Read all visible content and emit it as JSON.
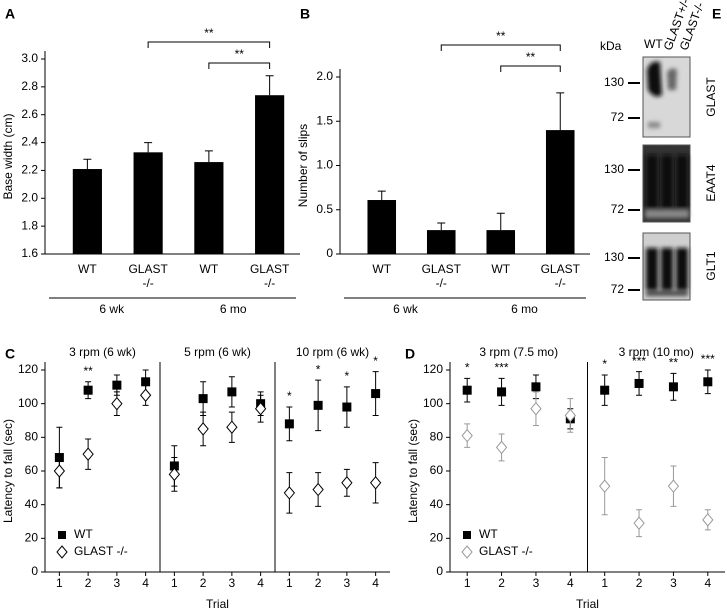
{
  "chart_data": [
    {
      "panel": "A",
      "type": "bar",
      "ylabel": "Base width (cm)",
      "categories": [
        "WT",
        "GLAST -/-",
        "WT",
        "GLAST -/-"
      ],
      "groups": [
        "6 wk",
        "6 mo"
      ],
      "values": [
        2.21,
        2.33,
        2.26,
        2.74
      ],
      "errors": [
        0.07,
        0.07,
        0.08,
        0.14
      ],
      "color": "#000000",
      "ylim": [
        1.6,
        3.0
      ],
      "yticks": [
        1.6,
        1.8,
        {
          "value": 2,
          "label": "2.0"
        },
        2.2,
        2.4,
        2.6,
        2.8,
        {
          "value": 3,
          "label": "3.0"
        }
      ],
      "brackets": [
        {
          "between": [
            1,
            3
          ],
          "label": "**"
        },
        {
          "between": [
            2,
            3
          ],
          "label": "**"
        }
      ]
    },
    {
      "panel": "B",
      "type": "bar",
      "ylabel": "Number of slips",
      "categories": [
        "WT",
        "GLAST -/-",
        "WT",
        "GLAST -/-"
      ],
      "groups": [
        "6 wk",
        "6 mo"
      ],
      "values": [
        0.61,
        0.27,
        0.27,
        1.4
      ],
      "errors": [
        0.1,
        0.08,
        0.19,
        0.42
      ],
      "color": "#000000",
      "ylim": [
        0,
        2.0
      ],
      "yticks": [
        0,
        0.5,
        {
          "value": 1,
          "label": "1.0"
        },
        1.5,
        {
          "value": 2,
          "label": "2.0"
        }
      ],
      "brackets": [
        {
          "between": [
            1,
            3
          ],
          "label": "**"
        },
        {
          "between": [
            2,
            3
          ],
          "label": "**"
        }
      ]
    },
    {
      "panel": "C",
      "type": "scatter",
      "ylabel": "Latency to fall (sec)",
      "xlabel": "Trial",
      "ylim": [
        0,
        120
      ],
      "yticks": [
        0,
        20,
        40,
        60,
        80,
        100,
        120
      ],
      "xlim": [
        0.5,
        4.5
      ],
      "legend": "lower left",
      "series": [
        {
          "name": "WT",
          "marker": "square",
          "color": "#000000"
        },
        {
          "name": "GLAST -/-",
          "marker": "diamond",
          "color": "#000000"
        }
      ],
      "facets": [
        {
          "title": "3 rpm (6 wk)",
          "x": [
            1,
            2,
            3,
            4
          ],
          "values": [
            [
              68,
              108,
              111,
              113
            ],
            [
              60,
              70,
              100,
              105
            ]
          ],
          "errors": [
            [
              18,
              5,
              6,
              7
            ],
            [
              10,
              9,
              7,
              6
            ]
          ],
          "stars": [
            null,
            "**",
            null,
            null
          ]
        },
        {
          "title": "5 rpm (6 wk)",
          "x": [
            1,
            2,
            3,
            4
          ],
          "values": [
            [
              63,
              103,
              107,
              100
            ],
            [
              58,
              85,
              86,
              97
            ]
          ],
          "errors": [
            [
              12,
              10,
              9,
              7
            ],
            [
              10,
              10,
              9,
              8
            ]
          ],
          "stars": [
            null,
            null,
            null,
            null
          ]
        },
        {
          "title": "10 rpm (6 wk)",
          "x": [
            1,
            2,
            3,
            4
          ],
          "values": [
            [
              88,
              99,
              98,
              106
            ],
            [
              47,
              49,
              53,
              53
            ]
          ],
          "errors": [
            [
              10,
              15,
              12,
              13
            ],
            [
              12,
              10,
              8,
              12
            ]
          ],
          "stars": [
            "*",
            "*",
            "*",
            "*"
          ]
        }
      ]
    },
    {
      "panel": "D",
      "type": "scatter",
      "ylabel": "Latency to fall (sec)",
      "xlabel": "Trial",
      "ylim": [
        0,
        120
      ],
      "yticks": [
        0,
        20,
        40,
        60,
        80,
        100,
        120
      ],
      "xlim": [
        0.5,
        4.5
      ],
      "legend": "lower left",
      "series": [
        {
          "name": "WT",
          "marker": "square",
          "color": "#000000"
        },
        {
          "name": "GLAST -/-",
          "marker": "diamond",
          "color": "#999999"
        }
      ],
      "facets": [
        {
          "title": "3 rpm (7.5 mo)",
          "x": [
            1,
            2,
            3,
            4
          ],
          "values": [
            [
              108,
              107,
              110,
              91
            ],
            [
              81,
              74,
              97,
              93
            ]
          ],
          "errors": [
            [
              7,
              8,
              7,
              6
            ],
            [
              7,
              8,
              10,
              10
            ]
          ],
          "stars": [
            "*",
            "***",
            null,
            null
          ]
        },
        {
          "title": "3 rpm (10 mo)",
          "x": [
            1,
            2,
            3,
            4
          ],
          "values": [
            [
              108,
              112,
              110,
              113
            ],
            [
              51,
              29,
              51,
              31
            ]
          ],
          "errors": [
            [
              9,
              7,
              8,
              7
            ],
            [
              17,
              8,
              12,
              6
            ]
          ],
          "stars": [
            "*",
            "***",
            "**",
            "***"
          ]
        }
      ]
    }
  ],
  "blot": {
    "panel": "E",
    "unit": "kDa",
    "lanes": [
      "WT",
      "GLAST+/-",
      "GLAST-/-"
    ],
    "blots": [
      {
        "name": "GLAST",
        "markers": [
          130,
          72
        ]
      },
      {
        "name": "EAAT4",
        "markers": [
          130,
          72
        ]
      },
      {
        "name": "GLT1",
        "markers": [
          130,
          72
        ]
      }
    ]
  }
}
